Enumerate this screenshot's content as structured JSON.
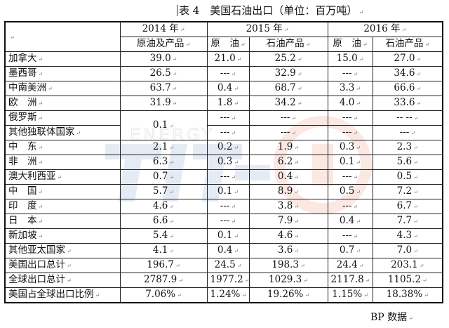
{
  "title": "表 4　美国石油出口（单位：百万吨）",
  "para_mark": "↵",
  "years": [
    "2014 年",
    "2015 年",
    "2016 年"
  ],
  "subheaders": [
    "原油及产品",
    "原　油",
    "石油产品",
    "原　油",
    "石油产品"
  ],
  "rows": [
    {
      "label": "加拿大",
      "v": [
        "39.0",
        "21.0",
        "25.2",
        "15.0",
        "27.0"
      ]
    },
    {
      "label": "墨西哥",
      "v": [
        "26.5",
        "---",
        "32.9",
        "---",
        "34.6"
      ]
    },
    {
      "label": "中南美洲",
      "v": [
        "63.7",
        "0.4",
        "68.7",
        "3.3",
        "66.6"
      ]
    },
    {
      "label": "欧　洲",
      "v": [
        "31.9",
        "1.8",
        "34.2",
        "4.0",
        "33.6"
      ]
    },
    {
      "label": "俄罗斯",
      "v": [
        "",
        "---",
        "---",
        "---",
        "-- --"
      ]
    },
    {
      "label": "其他独联体国家",
      "v": [
        "",
        "---",
        "---",
        "---",
        "---"
      ]
    },
    {
      "label": "中　东",
      "v": [
        "2.1",
        "0.2",
        "1.9",
        "0.3",
        "2.3"
      ]
    },
    {
      "label": "非　洲",
      "v": [
        "6.3",
        "0.3",
        "6.2",
        "0.1",
        "5.6"
      ]
    },
    {
      "label": "澳大利西亚",
      "v": [
        "0.7",
        "---",
        "0.4",
        "---",
        "0.5"
      ]
    },
    {
      "label": "中　国",
      "v": [
        "5.7",
        "0.1",
        "8.9",
        "0.5",
        "7.2"
      ]
    },
    {
      "label": "印　度",
      "v": [
        "4.6",
        "---",
        "3.8",
        "---",
        "6.7"
      ]
    },
    {
      "label": "日　本",
      "v": [
        "6.6",
        "---",
        "7.9",
        "0.4",
        "7.7"
      ]
    },
    {
      "label": "新加坡",
      "v": [
        "5.4",
        "0.1",
        "4.6",
        "---",
        "4.3"
      ]
    },
    {
      "label": "其他亚太国家",
      "v": [
        "4.1",
        "0.4",
        "3.6",
        "0.7",
        "7.0"
      ]
    },
    {
      "label": "美国出口总计",
      "v": [
        "196.7",
        "24.5",
        "198.3",
        "24.4",
        "203.1"
      ]
    },
    {
      "label": "全球出口总计",
      "v": [
        "2787.9",
        "1977.2",
        "1029.3",
        "2117.8",
        "1105.2"
      ]
    },
    {
      "label": "美国占全球出口比例",
      "v": [
        "7.06%",
        "1.24%",
        "19.26%",
        "1.15%",
        "18.38%"
      ]
    }
  ],
  "merged_russia_cis_2014": "0.1",
  "source": "BP 数据",
  "watermark": {
    "text": "ENERGY",
    "colors": {
      "blue": "#3d6fb0",
      "orange": "#e8704a",
      "grey": "#c9c9c9"
    }
  }
}
